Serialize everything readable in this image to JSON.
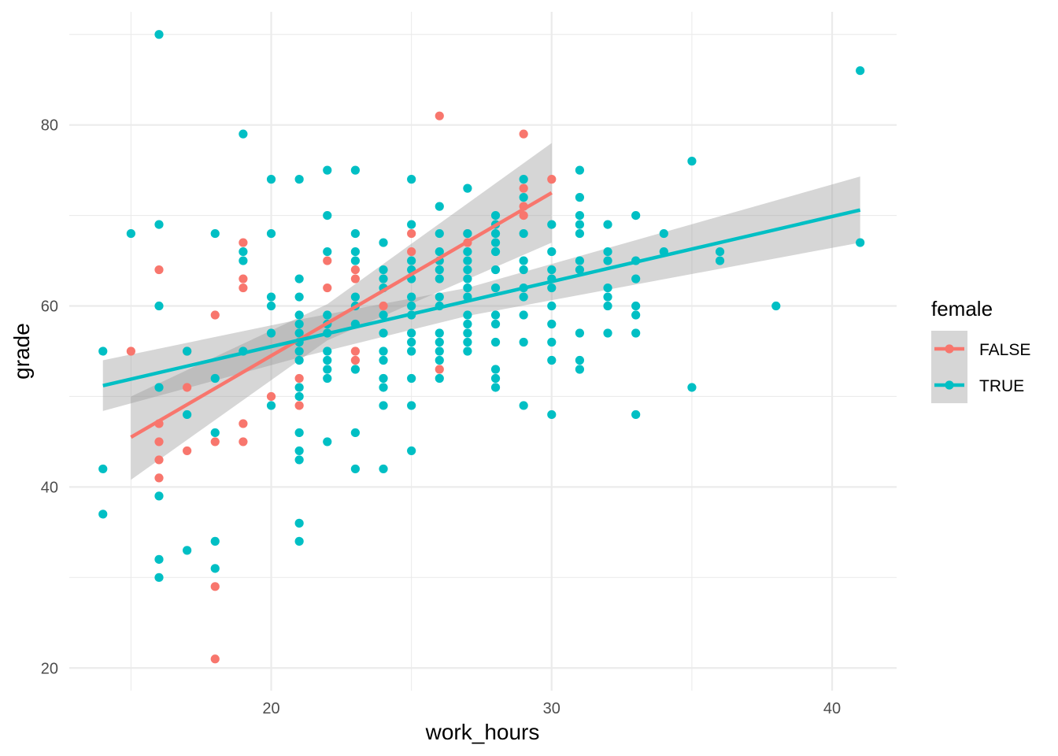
{
  "chart_data": {
    "type": "scatter",
    "title": "",
    "xlabel": "work_hours",
    "ylabel": "grade",
    "xlim": [
      12.8,
      42.3
    ],
    "ylim": [
      17.5,
      92.5
    ],
    "x_ticks": [
      20,
      30,
      40
    ],
    "x_tick_labels": [
      "20",
      "30",
      "40"
    ],
    "y_ticks": [
      20,
      40,
      60,
      80
    ],
    "y_tick_labels": [
      "20",
      "40",
      "60",
      "80"
    ],
    "grid": true,
    "legend": {
      "title": "female",
      "position": "right"
    },
    "colors": {
      "FALSE": "#F8766D",
      "TRUE": "#00BFC4",
      "ribbon": "#999999",
      "grid": "#ebebeb"
    },
    "series": [
      {
        "name": "FALSE",
        "color": "#F8766D",
        "points": [
          [
            15,
            55
          ],
          [
            16,
            64
          ],
          [
            16,
            47
          ],
          [
            16,
            45
          ],
          [
            16,
            43
          ],
          [
            16,
            41
          ],
          [
            17,
            55
          ],
          [
            17,
            51
          ],
          [
            17,
            44
          ],
          [
            18,
            59
          ],
          [
            18,
            45
          ],
          [
            18,
            29
          ],
          [
            18,
            21
          ],
          [
            19,
            67
          ],
          [
            19,
            63
          ],
          [
            19,
            62
          ],
          [
            19,
            47
          ],
          [
            19,
            45
          ],
          [
            20,
            50
          ],
          [
            21,
            52
          ],
          [
            21,
            49
          ],
          [
            22,
            65
          ],
          [
            22,
            62
          ],
          [
            23,
            64
          ],
          [
            23,
            63
          ],
          [
            23,
            55
          ],
          [
            23,
            54
          ],
          [
            24,
            60
          ],
          [
            25,
            68
          ],
          [
            25,
            66
          ],
          [
            26,
            81
          ],
          [
            26,
            53
          ],
          [
            27,
            68
          ],
          [
            27,
            67
          ],
          [
            29,
            79
          ],
          [
            29,
            73
          ],
          [
            29,
            71
          ],
          [
            29,
            70
          ],
          [
            30,
            74
          ]
        ],
        "fit": {
          "x": [
            15,
            30
          ],
          "y": [
            45.5,
            72.5
          ]
        },
        "ci": {
          "x": [
            15,
            22,
            30
          ],
          "lower": [
            40.8,
            56.2,
            67.0
          ],
          "upper": [
            50.0,
            60.2,
            78.0
          ]
        }
      },
      {
        "name": "TRUE",
        "color": "#00BFC4",
        "points": [
          [
            14,
            55
          ],
          [
            14,
            42
          ],
          [
            14,
            37
          ],
          [
            15,
            68
          ],
          [
            16,
            90
          ],
          [
            16,
            69
          ],
          [
            16,
            60
          ],
          [
            16,
            51
          ],
          [
            16,
            39
          ],
          [
            16,
            32
          ],
          [
            16,
            30
          ],
          [
            17,
            55
          ],
          [
            17,
            48
          ],
          [
            17,
            33
          ],
          [
            18,
            68
          ],
          [
            18,
            52
          ],
          [
            18,
            46
          ],
          [
            18,
            34
          ],
          [
            18,
            31
          ],
          [
            19,
            79
          ],
          [
            19,
            66
          ],
          [
            19,
            65
          ],
          [
            19,
            55
          ],
          [
            20,
            74
          ],
          [
            20,
            68
          ],
          [
            20,
            61
          ],
          [
            20,
            60
          ],
          [
            20,
            57
          ],
          [
            20,
            49
          ],
          [
            21,
            74
          ],
          [
            21,
            63
          ],
          [
            21,
            61
          ],
          [
            21,
            59
          ],
          [
            21,
            58
          ],
          [
            21,
            57
          ],
          [
            21,
            56
          ],
          [
            21,
            55
          ],
          [
            21,
            54
          ],
          [
            21,
            51
          ],
          [
            21,
            50
          ],
          [
            21,
            46
          ],
          [
            21,
            44
          ],
          [
            21,
            43
          ],
          [
            21,
            36
          ],
          [
            21,
            34
          ],
          [
            22,
            75
          ],
          [
            22,
            70
          ],
          [
            22,
            66
          ],
          [
            22,
            59
          ],
          [
            22,
            58
          ],
          [
            22,
            57
          ],
          [
            22,
            55
          ],
          [
            22,
            54
          ],
          [
            22,
            53
          ],
          [
            22,
            52
          ],
          [
            22,
            45
          ],
          [
            23,
            75
          ],
          [
            23,
            68
          ],
          [
            23,
            66
          ],
          [
            23,
            65
          ],
          [
            23,
            61
          ],
          [
            23,
            60
          ],
          [
            23,
            58
          ],
          [
            23,
            53
          ],
          [
            23,
            46
          ],
          [
            23,
            42
          ],
          [
            24,
            67
          ],
          [
            24,
            64
          ],
          [
            24,
            63
          ],
          [
            24,
            62
          ],
          [
            24,
            59
          ],
          [
            24,
            57
          ],
          [
            24,
            55
          ],
          [
            24,
            54
          ],
          [
            24,
            52
          ],
          [
            24,
            51
          ],
          [
            24,
            49
          ],
          [
            24,
            42
          ],
          [
            25,
            74
          ],
          [
            25,
            69
          ],
          [
            25,
            65
          ],
          [
            25,
            64
          ],
          [
            25,
            63
          ],
          [
            25,
            61
          ],
          [
            25,
            60
          ],
          [
            25,
            59
          ],
          [
            25,
            57
          ],
          [
            25,
            56
          ],
          [
            25,
            55
          ],
          [
            25,
            52
          ],
          [
            25,
            49
          ],
          [
            25,
            44
          ],
          [
            26,
            71
          ],
          [
            26,
            68
          ],
          [
            26,
            66
          ],
          [
            26,
            65
          ],
          [
            26,
            64
          ],
          [
            26,
            63
          ],
          [
            26,
            61
          ],
          [
            26,
            60
          ],
          [
            26,
            57
          ],
          [
            26,
            56
          ],
          [
            26,
            55
          ],
          [
            26,
            54
          ],
          [
            26,
            52
          ],
          [
            27,
            73
          ],
          [
            27,
            68
          ],
          [
            27,
            66
          ],
          [
            27,
            65
          ],
          [
            27,
            64
          ],
          [
            27,
            63
          ],
          [
            27,
            62
          ],
          [
            27,
            61
          ],
          [
            27,
            59
          ],
          [
            27,
            58
          ],
          [
            27,
            57
          ],
          [
            27,
            56
          ],
          [
            27,
            55
          ],
          [
            28,
            70
          ],
          [
            28,
            69
          ],
          [
            28,
            68
          ],
          [
            28,
            67
          ],
          [
            28,
            66
          ],
          [
            28,
            64
          ],
          [
            28,
            62
          ],
          [
            28,
            59
          ],
          [
            28,
            58
          ],
          [
            28,
            56
          ],
          [
            28,
            53
          ],
          [
            28,
            52
          ],
          [
            28,
            51
          ],
          [
            29,
            74
          ],
          [
            29,
            72
          ],
          [
            29,
            68
          ],
          [
            29,
            65
          ],
          [
            29,
            64
          ],
          [
            29,
            62
          ],
          [
            29,
            61
          ],
          [
            29,
            59
          ],
          [
            29,
            56
          ],
          [
            29,
            49
          ],
          [
            30,
            69
          ],
          [
            30,
            66
          ],
          [
            30,
            64
          ],
          [
            30,
            63
          ],
          [
            30,
            62
          ],
          [
            30,
            60
          ],
          [
            30,
            58
          ],
          [
            30,
            56
          ],
          [
            30,
            54
          ],
          [
            30,
            48
          ],
          [
            31,
            75
          ],
          [
            31,
            72
          ],
          [
            31,
            70
          ],
          [
            31,
            69
          ],
          [
            31,
            68
          ],
          [
            31,
            65
          ],
          [
            31,
            64
          ],
          [
            31,
            57
          ],
          [
            31,
            54
          ],
          [
            31,
            53
          ],
          [
            32,
            69
          ],
          [
            32,
            66
          ],
          [
            32,
            65
          ],
          [
            32,
            62
          ],
          [
            32,
            61
          ],
          [
            32,
            60
          ],
          [
            32,
            57
          ],
          [
            33,
            70
          ],
          [
            33,
            65
          ],
          [
            33,
            63
          ],
          [
            33,
            60
          ],
          [
            33,
            59
          ],
          [
            33,
            57
          ],
          [
            33,
            48
          ],
          [
            34,
            68
          ],
          [
            34,
            66
          ],
          [
            35,
            76
          ],
          [
            35,
            51
          ],
          [
            36,
            66
          ],
          [
            36,
            65
          ],
          [
            38,
            60
          ],
          [
            41,
            86
          ],
          [
            41,
            67
          ]
        ],
        "fit": {
          "x": [
            14,
            41
          ],
          "y": [
            51.2,
            70.6
          ]
        },
        "ci": {
          "x": [
            14,
            21,
            27,
            41
          ],
          "lower": [
            48.4,
            54.3,
            58.9,
            67.0
          ],
          "upper": [
            54.0,
            58.5,
            62.0,
            74.3
          ]
        }
      }
    ]
  }
}
